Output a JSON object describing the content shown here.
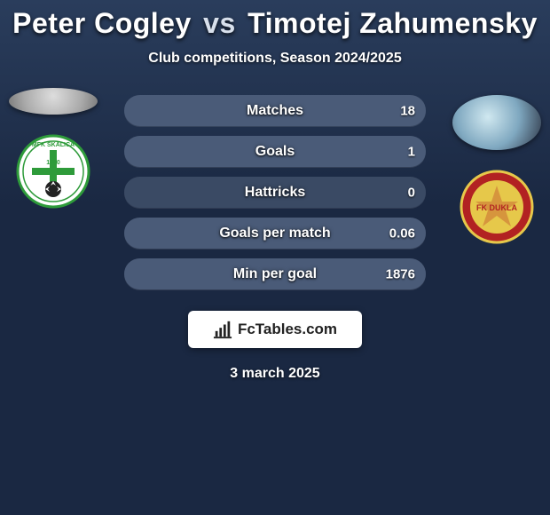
{
  "title": {
    "player1": "Peter Cogley",
    "vs": "vs",
    "player2": "Timotej Zahumensky"
  },
  "subtitle": "Club competitions, Season 2024/2025",
  "date": "3 march 2025",
  "footer_brand": "FcTables.com",
  "colors": {
    "background": "#1a2842",
    "bar_bg": "#3a4a64",
    "bar_fill_right": "#4a5b78",
    "text": "#ffffff"
  },
  "stats": [
    {
      "label": "Matches",
      "left_val": "",
      "right_val": "18",
      "left_pct": 0,
      "right_pct": 100,
      "left_color": "#3a4a64",
      "right_color": "#4a5b78"
    },
    {
      "label": "Goals",
      "left_val": "",
      "right_val": "1",
      "left_pct": 0,
      "right_pct": 100,
      "left_color": "#3a4a64",
      "right_color": "#4a5b78"
    },
    {
      "label": "Hattricks",
      "left_val": "",
      "right_val": "0",
      "left_pct": 50,
      "right_pct": 50,
      "left_color": "#3a4a64",
      "right_color": "#3a4a64"
    },
    {
      "label": "Goals per match",
      "left_val": "",
      "right_val": "0.06",
      "left_pct": 0,
      "right_pct": 100,
      "left_color": "#3a4a64",
      "right_color": "#4a5b78"
    },
    {
      "label": "Min per goal",
      "left_val": "",
      "right_val": "1876",
      "left_pct": 0,
      "right_pct": 100,
      "left_color": "#3a4a64",
      "right_color": "#4a5b78"
    }
  ],
  "clubs": {
    "left": {
      "name": "MFK Skalica",
      "primary": "#2e9b3a",
      "secondary": "#ffffff",
      "year": "1920"
    },
    "right": {
      "name": "FK Dukla Banská Bystrica",
      "primary": "#e6c84a",
      "secondary": "#b22222"
    }
  }
}
